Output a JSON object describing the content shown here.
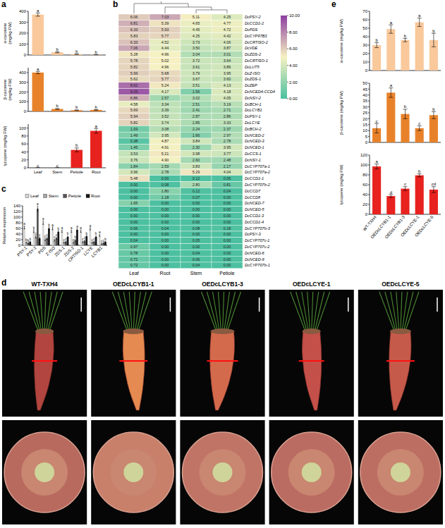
{
  "chart_data": [
    {
      "type": "bar",
      "panel": "a",
      "categories": [
        "Leaf",
        "Stem",
        "Petiole",
        "Root"
      ],
      "values": [
        370,
        25,
        8,
        3
      ],
      "errors": [
        15,
        5,
        2,
        1
      ],
      "annotations": [
        "a",
        "b",
        "b",
        "b"
      ],
      "color": "#f9c89b",
      "ylabel": "α-carotene (mg/kg FW)",
      "ylim": [
        0,
        400
      ],
      "yticks": [
        0,
        100,
        200,
        300,
        400
      ],
      "tick_labels": "y"
    },
    {
      "type": "bar",
      "categories": [
        "Leaf",
        "Stem",
        "Petiole",
        "Root"
      ],
      "values": [
        400,
        25,
        12,
        15
      ],
      "errors": [
        12,
        5,
        3,
        3
      ],
      "annotations": [
        "a",
        "b",
        "b",
        "b"
      ],
      "color": "#e8822a",
      "ylabel": "β-carotene (mg/kg FW)",
      "ylim": [
        0,
        450
      ],
      "yticks": [
        0,
        100,
        200,
        300,
        400
      ],
      "tick_labels": "y"
    },
    {
      "type": "bar",
      "categories": [
        "Leaf",
        "Stem",
        "Petiole",
        "Root"
      ],
      "values": [
        0,
        0,
        45,
        93
      ],
      "errors": [
        0,
        0,
        5,
        6
      ],
      "annotations": [
        "c",
        "c",
        "b",
        "a"
      ],
      "color": "#e8221e",
      "ylabel": "lycopene (mg/kg FW)",
      "ylim": [
        0,
        110
      ],
      "yticks": [
        0,
        20,
        40,
        60,
        80,
        100
      ]
    },
    {
      "type": "heatmap",
      "panel": "b",
      "columns": [
        "Leaf",
        "Root",
        "Stem",
        "Petiole"
      ],
      "rows": [
        "DcPSY-2",
        "DcCCD1-2",
        "DcPDS",
        "DcCYP97B3",
        "DcCRTISO-2",
        "DcVDE",
        "DcZDS-2",
        "DcCRTISO-1",
        "DcLUT5",
        "DcZ-ISO",
        "DcZDS-1",
        "DcZEP",
        "DcNCED4-CCD4",
        "DcNSY-2",
        "DcBCH-1",
        "DcLCYB1",
        "DcPSY-1",
        "DcLCYE",
        "DcBCH-2",
        "DcNCED-2",
        "DcNCED-3",
        "DcNCED-1",
        "DcCCS-1",
        "DcNSY-1",
        "DcCYP707a-1",
        "DcCYP707a-2",
        "DcCCD1-1",
        "DcCYP707b-2",
        "DcCCD7",
        "DcCCD8",
        "DcNCED-7",
        "DcNCED-5",
        "DcCCD1-3",
        "DcCCD1-4",
        "DcCYP707b-3",
        "DcPSY-3",
        "DcCYP707c-1",
        "DcCYP707c-2",
        "DcNCED-6",
        "DcNCED-9",
        "DcCYP707b-1"
      ],
      "values": [
        [
          6.06,
          7.03,
          5.11,
          4.25
        ],
        [
          6.81,
          5.39,
          4.65,
          4.77
        ],
        [
          6.33,
          5.93,
          4.45,
          4.72
        ],
        [
          5.83,
          5.77,
          4.25,
          4.42
        ],
        [
          6.33,
          4.52,
          3.73,
          4.06
        ],
        [
          7.06,
          4.44,
          3.5,
          3.87
        ],
        [
          5.28,
          4.96,
          3.04,
          3.01
        ],
        [
          5.78,
          5.02,
          3.72,
          3.64
        ],
        [
          5.82,
          4.96,
          3.61,
          3.86
        ],
        [
          5.99,
          5.68,
          3.79,
          3.95
        ],
        [
          5.62,
          5.77,
          3.67,
          3.6
        ],
        [
          8.62,
          5.24,
          3.51,
          4.13
        ],
        [
          9.25,
          4.17,
          1.56,
          4.18
        ],
        [
          6.86,
          2.57,
          3.02,
          4.05
        ],
        [
          4.58,
          3.34,
          2.51,
          3.19
        ],
        [
          5.69,
          3.39,
          2.41,
          2.71
        ],
        [
          5.94,
          3.52,
          2.87,
          2.86
        ],
        [
          5.82,
          3.74,
          2.85,
          3.33
        ],
        [
          1.09,
          3.08,
          2.24,
          2.37
        ],
        [
          1.49,
          3.95,
          1.66,
          2.97
        ],
        [
          0.38,
          4.87,
          3.84,
          2.78
        ],
        [
          1.45,
          4.91,
          2.3,
          3.95
        ],
        [
          3.53,
          5.21,
          3.98,
          3.77
        ],
        [
          3.76,
          4.9,
          2.6,
          2.48
        ],
        [
          1.84,
          2.59,
          3.83,
          2.17
        ],
        [
          3.96,
          2.78,
          5.29,
          4.04
        ],
        [
          5.48,
          0.0,
          0.12,
          0.06
        ],
        [
          0.0,
          0.08,
          2.8,
          0.81
        ],
        [
          0.0,
          1.8,
          0.12,
          0.04
        ],
        [
          0.0,
          1.18,
          0.07,
          0.0
        ],
        [
          1.65,
          0.0,
          0.0,
          0.0
        ],
        [
          0.0,
          0.0,
          0.0,
          0.0
        ],
        [
          0.0,
          0.0,
          0.0,
          0.0
        ],
        [
          0.0,
          0.0,
          0.0,
          0.0
        ],
        [
          0.06,
          0.04,
          0.08,
          0.18
        ],
        [
          0.0,
          0.0,
          0.0,
          0.0
        ],
        [
          0.04,
          0.0,
          0.05,
          0.0
        ],
        [
          0.97,
          0.0,
          0.0,
          0.0
        ],
        [
          0.78,
          0.0,
          0.04,
          0.0
        ],
        [
          0.72,
          0.0,
          0.06,
          0.0
        ],
        [
          0.72,
          0.0,
          0.04,
          0.0
        ]
      ],
      "value_labels": [
        [
          "6.06",
          "7.03",
          "5.11",
          "4.25"
        ],
        [
          "6.81",
          "5.39",
          "4.65",
          "4.77"
        ],
        [
          "6.33",
          "5.93",
          "4.45",
          "4.72"
        ],
        [
          "5.83",
          "5.77",
          "4.25",
          "4.42"
        ],
        [
          "6.33",
          "4.52",
          "3.73",
          "4.06"
        ],
        [
          "7.06",
          "4.44",
          "3.50",
          "3.87"
        ],
        [
          "5.28",
          "4.96",
          "3.04",
          "3.01"
        ],
        [
          "5.78",
          "5.02",
          "3.72",
          "3.64"
        ],
        [
          "5.82",
          "4.96",
          "3.61",
          "3.86"
        ],
        [
          "5.99",
          "5.68",
          "3.79",
          "3.95"
        ],
        [
          "5.62",
          "5.77",
          "3.67",
          "3.60"
        ],
        [
          "8.62",
          "5.24",
          "3.51",
          "4.13"
        ],
        [
          "9.25",
          "4.17",
          "1.56",
          "4.18"
        ],
        [
          "6.86",
          "2.57",
          "3.02",
          "4.05"
        ],
        [
          "4.58",
          "3.34",
          "2.51",
          "3.19"
        ],
        [
          "5.69",
          "3.39",
          "2.41",
          "2.71"
        ],
        [
          "5.94",
          "3.52",
          "2.87",
          "2.86"
        ],
        [
          "5.82",
          "3.74",
          "2.85",
          "3.33"
        ],
        [
          "1.09",
          "3.08",
          "2.24",
          "2.37"
        ],
        [
          "1.49",
          "3.95",
          "1.66",
          "2.97"
        ],
        [
          "0.38",
          "4.87",
          "3.84",
          "2.78"
        ],
        [
          "1.45",
          "4.91",
          "2.30",
          "3.95"
        ],
        [
          "3.53",
          "5.21",
          "3.98",
          "3.77"
        ],
        [
          "3.76",
          "4.90",
          "2.60",
          "2.48"
        ],
        [
          "1.84",
          "2.59",
          "3.83",
          "2.17"
        ],
        [
          "3.96",
          "2.78",
          "5.29",
          "4.04"
        ],
        [
          "5.48",
          "0.00",
          "0.12",
          "0.06"
        ],
        [
          "0.00",
          "0.08",
          "2.80",
          "0.81"
        ],
        [
          "0.00",
          "1.80",
          "0.12",
          "0.04"
        ],
        [
          "0.00",
          "1.18",
          "0.07",
          "0.00"
        ],
        [
          "1.65",
          "0.00",
          "0.00",
          "0.00"
        ],
        [
          "0.00",
          "0.00",
          "0.00",
          "0.00"
        ],
        [
          "0.00",
          "0.00",
          "0.00",
          "0.00"
        ],
        [
          "0.00",
          "0.00",
          "0.00",
          "0.00"
        ],
        [
          "0.06",
          "0.04",
          "0.08",
          "0.18"
        ],
        [
          "0.00",
          "0.00",
          "0.00",
          "0.00"
        ],
        [
          "0.04",
          "0.00",
          "0.05",
          "0.00"
        ],
        [
          "0.97",
          "0.00",
          "0.00",
          "0.00"
        ],
        [
          "0.78",
          "0.00",
          "0.04",
          "0.00"
        ],
        [
          "0.72",
          "0.00",
          "0.06",
          "0.00"
        ],
        [
          "0.72",
          "0.00",
          "0.04",
          "0.00"
        ]
      ],
      "data_labels": true,
      "colorbar": {
        "range": [
          0,
          10
        ],
        "ticks": [
          {
            "value": 0,
            "label": "0.00"
          },
          {
            "value": 2,
            "label": "2.00"
          },
          {
            "value": 4,
            "label": "4.00"
          },
          {
            "value": 6,
            "label": "6.00"
          },
          {
            "value": 8,
            "label": "8.00"
          },
          {
            "value": 10,
            "label": "10.00"
          }
        ]
      }
    },
    {
      "type": "bar",
      "panel": "c",
      "categories": [
        "PSY-1",
        "PSY-2",
        "PDS",
        "Z-ISO",
        "ZDS-1",
        "ZDS-2",
        "CRTISO-1",
        "LCYE",
        "LCYB1"
      ],
      "series": [
        {
          "name": "Leaf",
          "color": "#d4d4d4",
          "values": [
            63,
            50,
            80,
            60,
            50,
            50,
            50,
            58,
            35
          ],
          "errors": [
            5,
            5,
            6,
            5,
            4,
            4,
            4,
            4,
            3
          ],
          "annotations": [
            "a",
            "b",
            "a",
            "a",
            "a",
            "a",
            "a",
            "a",
            "a"
          ]
        },
        {
          "name": "Stem",
          "color": "#a3a3a3",
          "values": [
            10,
            30,
            20,
            18,
            10,
            10,
            12,
            10,
            5
          ],
          "errors": [
            2,
            4,
            3,
            3,
            2,
            2,
            2,
            2,
            1
          ],
          "annotations": [
            "b",
            "c",
            "c",
            "c",
            "c",
            "c",
            "c",
            "c",
            "c"
          ]
        },
        {
          "name": "Petiole",
          "color": "#555555",
          "values": [
            8,
            130,
            25,
            25,
            12,
            18,
            15,
            12,
            8
          ],
          "errors": [
            2,
            10,
            4,
            3,
            2,
            3,
            3,
            2,
            2
          ],
          "annotations": [
            "b",
            "a",
            "c",
            "c",
            "c",
            "b",
            "c",
            "c",
            "c"
          ]
        },
        {
          "name": "Root",
          "color": "#151515",
          "values": [
            12,
            25,
            60,
            48,
            30,
            55,
            32,
            30,
            12
          ],
          "errors": [
            2,
            4,
            5,
            4,
            3,
            4,
            3,
            3,
            2
          ],
          "annotations": [
            "b",
            "c",
            "b",
            "b",
            "b",
            "a",
            "b",
            "b",
            "b"
          ]
        }
      ],
      "ylabel": "Relative expression",
      "ylim": [
        0,
        140
      ],
      "yticks": [
        0,
        20,
        40,
        60,
        80,
        100,
        120,
        140
      ],
      "legend": "top"
    },
    {
      "type": "bar",
      "panel": "e",
      "categories": [
        "WT-TXH4",
        "OEDcLCYB1-1",
        "OEDcLCYB1-3",
        "OEDcLCYE-1",
        "OEDcLCYE-5"
      ],
      "values": [
        30,
        49,
        36,
        57,
        36
      ],
      "errors": [
        3,
        5,
        2,
        5,
        8
      ],
      "annotations": [
        "b",
        "a",
        "b",
        "a",
        "b"
      ],
      "color": "#f9c89b",
      "ylabel": "α-carotene (mg/kg FW)",
      "ylim": [
        0,
        70
      ],
      "yticks": [
        0,
        10,
        20,
        30,
        40,
        50,
        60,
        70
      ],
      "tick_labels": "y"
    },
    {
      "type": "bar",
      "categories": [
        "WT-TXH4",
        "OEDcLCYB1-1",
        "OEDcLCYB1-3",
        "OEDcLCYE-1",
        "OEDcLCYE-5"
      ],
      "values": [
        12,
        42,
        24,
        12,
        23
      ],
      "errors": [
        4,
        4,
        4,
        2,
        3
      ],
      "annotations": [
        "c",
        "a",
        "b",
        "c",
        "b"
      ],
      "color": "#e8822a",
      "ylabel": "β-carotene (mg/kg FW)",
      "ylim": [
        0,
        50
      ],
      "yticks": [
        0,
        5,
        10,
        15,
        20,
        25,
        30,
        35,
        40,
        45,
        50
      ],
      "tick_labels": "y"
    },
    {
      "type": "bar",
      "categories": [
        "WT-TXH4",
        "OEDcLCYB1-1",
        "OEDcLCYB1-3",
        "OEDcLCYE-1",
        "OEDcLCYE-5"
      ],
      "values": [
        97,
        37,
        52,
        79,
        50
      ],
      "errors": [
        5,
        3,
        4,
        3,
        6
      ],
      "annotations": [
        "a",
        "d",
        "c",
        "b",
        "cd"
      ],
      "color": "#e8221e",
      "ylabel": "lycopene (mg/kg FW)",
      "ylim": [
        0,
        120
      ],
      "yticks": [
        0,
        20,
        40,
        60,
        80,
        100,
        120
      ]
    }
  ],
  "photos": {
    "panel": "d",
    "labels": [
      "WT-TXH4",
      "OEDcLCYB1-1",
      "OEDcLCYB1-3",
      "OEDcLCYE-1",
      "OEDcLCYE-5"
    ]
  }
}
